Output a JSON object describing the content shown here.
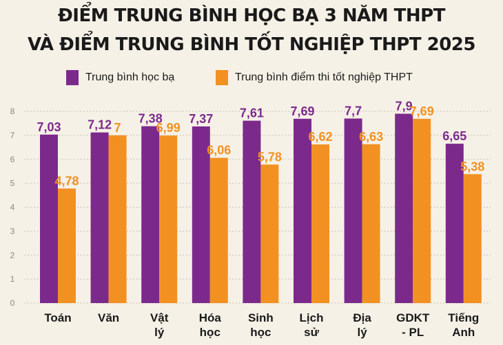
{
  "title_lines": [
    "ĐIỂM TRUNG BÌNH HỌC BẠ 3 NĂM THPT",
    "VÀ ĐIỂM TRUNG BÌNH TỐT NGHIỆP THPT 2025"
  ],
  "colors": {
    "background": "#f6f1e7",
    "series_1": "#7b2a8c",
    "series_2": "#f29122",
    "grid": "#b8b5ad",
    "axis_text": "#8a8780",
    "category_text": "#1a1a1a"
  },
  "chart_data": {
    "type": "bar",
    "title": "ĐIỂM TRUNG BÌNH HỌC BẠ 3 NĂM THPT VÀ ĐIỂM TRUNG BÌNH TỐT NGHIỆP THPT 2025",
    "xlabel": "",
    "ylabel": "",
    "ylim": [
      0,
      8
    ],
    "yticks": [
      "0",
      "1",
      "2",
      "3",
      "4",
      "5",
      "6",
      "7",
      "8"
    ],
    "grid": true,
    "grid_style": "dotted",
    "legend_position": "top",
    "categories": [
      [
        "Toán"
      ],
      [
        "Văn"
      ],
      [
        "Vật",
        "lý"
      ],
      [
        "Hóa",
        "học"
      ],
      [
        "Sinh",
        "học"
      ],
      [
        "Lịch",
        "sử"
      ],
      [
        "Địa",
        "lý"
      ],
      [
        "GDKT",
        "- PL"
      ],
      [
        "Tiếng",
        "Anh"
      ]
    ],
    "series": [
      {
        "name": "Trung bình học bạ",
        "values": [
          7.03,
          7.12,
          7.38,
          7.37,
          7.61,
          7.69,
          7.7,
          7.9,
          6.65
        ],
        "labels": [
          "7,03",
          "7,12",
          "7,38",
          "7,37",
          "7,61",
          "7,69",
          "7,7",
          "7,9",
          "6,65"
        ]
      },
      {
        "name": "Trung bình điểm thi tốt nghiệp THPT",
        "values": [
          4.78,
          7,
          6.99,
          6.06,
          5.78,
          6.62,
          6.63,
          7.69,
          5.38
        ],
        "labels": [
          "4,78",
          "7",
          "6,99",
          "6,06",
          "5,78",
          "6,62",
          "6,63",
          "7,69",
          "5,38"
        ]
      }
    ]
  }
}
